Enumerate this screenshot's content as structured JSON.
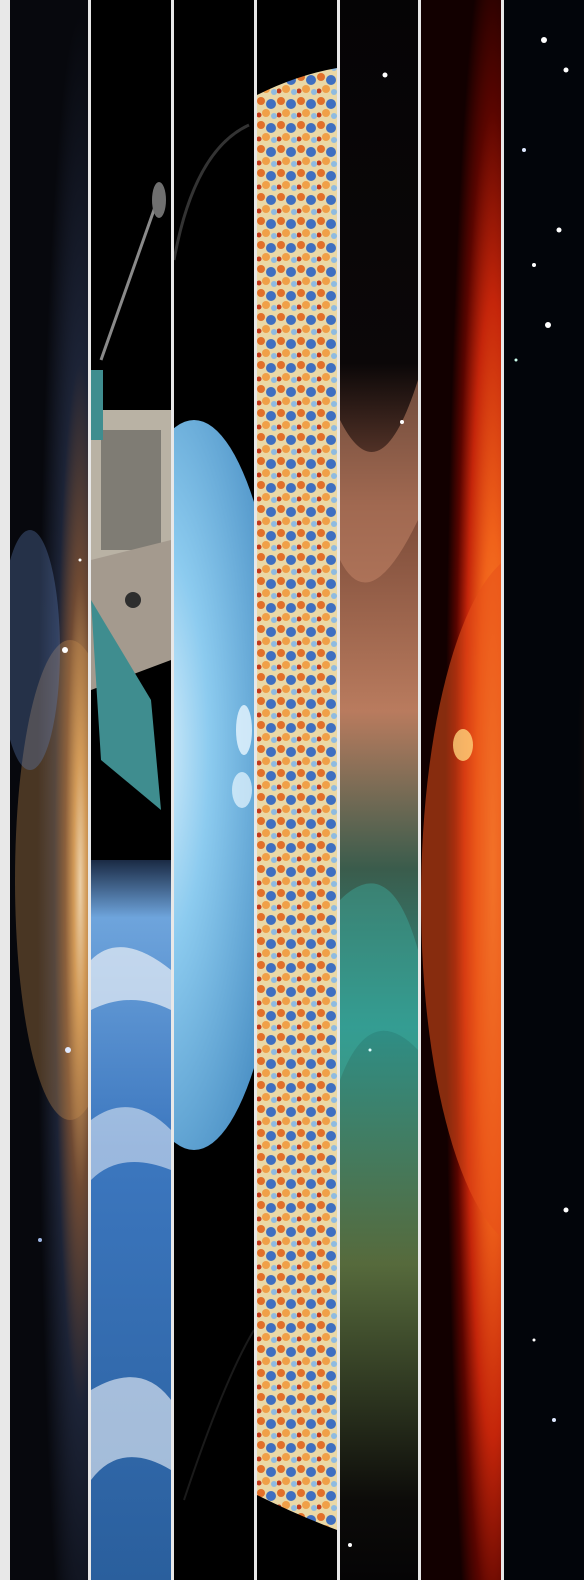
{
  "image": {
    "description_panels": [
      {
        "name": "spiral-galaxy",
        "palette": [
          "#0a0c14",
          "#c98a4a",
          "#7fa2d4"
        ]
      },
      {
        "name": "satellite-over-earth",
        "palette": [
          "#000000",
          "#b9b2a4",
          "#3c7cc4"
        ]
      },
      {
        "name": "planet-uranus",
        "palette": [
          "#000000",
          "#7fc3ea",
          "#dff1fb"
        ]
      },
      {
        "name": "cosmic-microwave-background",
        "palette": [
          "#f0a048",
          "#3f6fc0",
          "#e8e0c0"
        ]
      },
      {
        "name": "nebula-filaments",
        "palette": [
          "#0a0608",
          "#b76c4a",
          "#2a8f88"
        ]
      },
      {
        "name": "sun",
        "palette": [
          "#250000",
          "#c4250a",
          "#ff8a2a"
        ]
      },
      {
        "name": "star-field-swirl",
        "palette": [
          "#02050a",
          "#d6641c",
          "#ffffff"
        ]
      }
    ]
  }
}
